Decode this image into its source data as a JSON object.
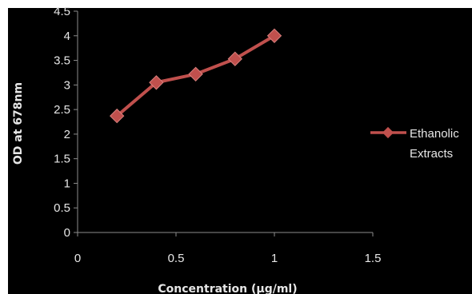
{
  "chart_data": {
    "type": "line",
    "x": [
      0.2,
      0.4,
      0.6,
      0.8,
      1.0
    ],
    "series": [
      {
        "name": "Ethanolic Extracts",
        "name_lines": [
          "Ethanolic",
          "Extracts"
        ],
        "values": [
          2.37,
          3.05,
          3.22,
          3.53,
          4.0
        ],
        "color": "#c0504d"
      }
    ],
    "xlabel": "Concentration (µg/ml)",
    "ylabel": "OD at 678nm",
    "xlim": [
      0,
      1.5
    ],
    "ylim": [
      0,
      4.5
    ],
    "x_ticks": [
      "0",
      "0.5",
      "1",
      "1.5"
    ],
    "y_ticks": [
      "0",
      "0.5",
      "1",
      "1.5",
      "2",
      "2.5",
      "3",
      "3.5",
      "4",
      "4.5"
    ],
    "grid": false,
    "legend_position": "right",
    "background": "#000000",
    "text_color": "#e6e6e6"
  }
}
